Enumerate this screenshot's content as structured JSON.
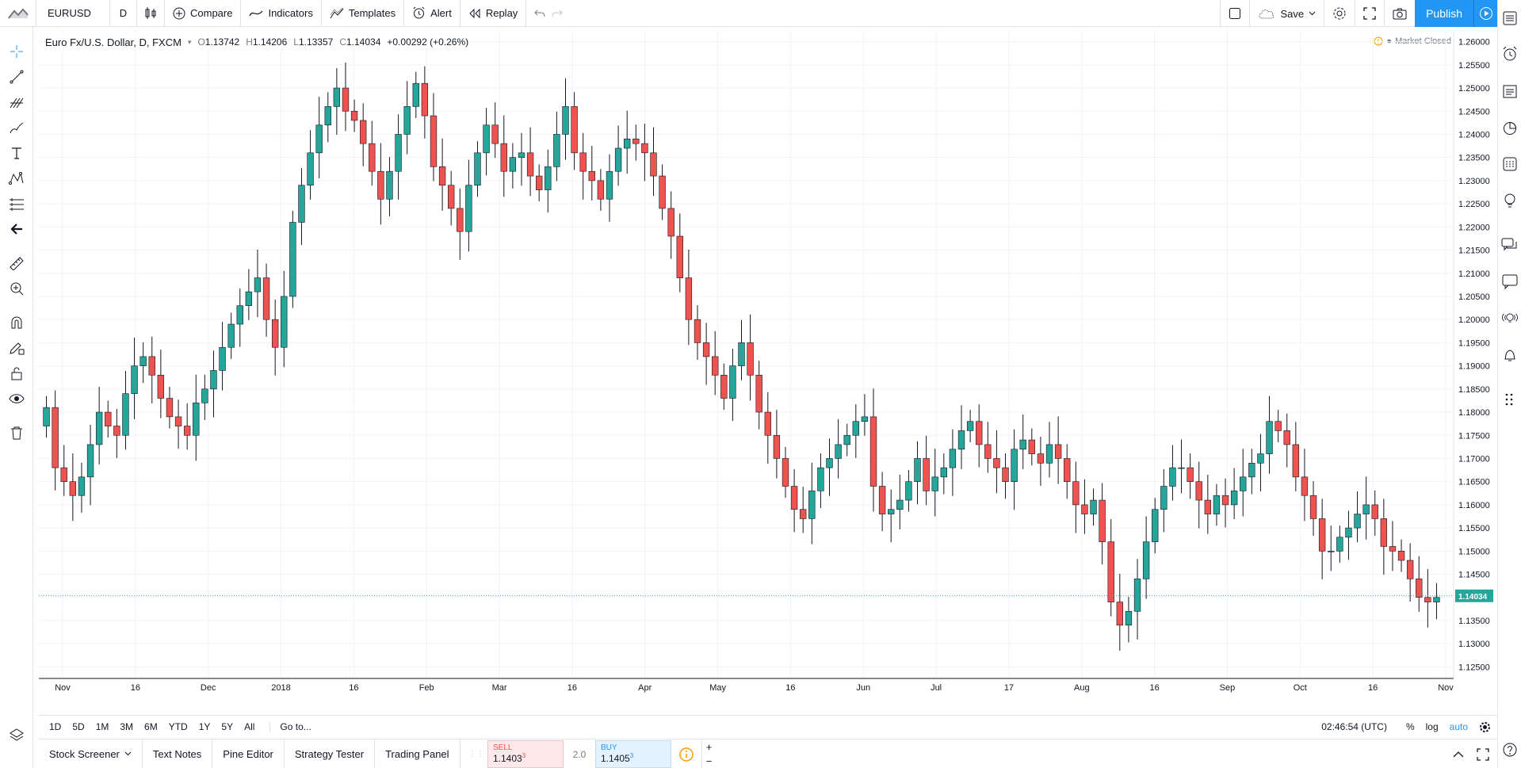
{
  "toolbar": {
    "symbol": "EURUSD",
    "interval": "D",
    "compare": "Compare",
    "indicators": "Indicators",
    "templates": "Templates",
    "alert": "Alert",
    "replay": "Replay",
    "save": "Save",
    "publish": "Publish"
  },
  "legend": {
    "title": "Euro Fx/U.S. Dollar, D, FXCM",
    "o_label": "O",
    "o": "1.13742",
    "h_label": "H",
    "h": "1.14206",
    "l_label": "L",
    "l": "1.13357",
    "c_label": "C",
    "c": "1.14034",
    "change": "+0.00292 (+0.26%)"
  },
  "market_status": "Market Closed",
  "last_price": "1.14034",
  "colors": {
    "up": "#26a69a",
    "down": "#ef5350",
    "accent": "#2196f3",
    "last_line": "#26a69a"
  },
  "chart_data": {
    "type": "candlestick",
    "symbol": "EURUSD",
    "y_ticks": [
      "1.26000",
      "1.25500",
      "1.25000",
      "1.24500",
      "1.24000",
      "1.23500",
      "1.23000",
      "1.22500",
      "1.22000",
      "1.21500",
      "1.21000",
      "1.20500",
      "1.20000",
      "1.19500",
      "1.19000",
      "1.18500",
      "1.18000",
      "1.17500",
      "1.17000",
      "1.16500",
      "1.16000",
      "1.15500",
      "1.15000",
      "1.14500",
      "1.14000",
      "1.13500",
      "1.13000",
      "1.12500"
    ],
    "x_ticks": [
      "Nov",
      "16",
      "Dec",
      "2018",
      "16",
      "Feb",
      "Mar",
      "16",
      "Apr",
      "May",
      "16",
      "Jun",
      "Jul",
      "17",
      "Aug",
      "16",
      "Sep",
      "Oct",
      "16",
      "Nov"
    ],
    "ylim": [
      1.1225,
      1.2625
    ],
    "grid": true,
    "close_path": [
      1.181,
      1.168,
      1.165,
      1.162,
      1.166,
      1.173,
      1.18,
      1.177,
      1.175,
      1.184,
      1.19,
      1.192,
      1.188,
      1.183,
      1.179,
      1.177,
      1.175,
      1.182,
      1.185,
      1.189,
      1.194,
      1.199,
      1.203,
      1.206,
      1.209,
      1.2,
      1.194,
      1.205,
      1.221,
      1.229,
      1.236,
      1.242,
      1.246,
      1.25,
      1.245,
      1.243,
      1.238,
      1.232,
      1.226,
      1.232,
      1.24,
      1.246,
      1.251,
      1.244,
      1.233,
      1.229,
      1.224,
      1.219,
      1.229,
      1.236,
      1.242,
      1.238,
      1.232,
      1.235,
      1.236,
      1.231,
      1.228,
      1.233,
      1.24,
      1.246,
      1.236,
      1.232,
      1.23,
      1.226,
      1.232,
      1.237,
      1.239,
      1.238,
      1.236,
      1.231,
      1.224,
      1.218,
      1.209,
      1.2,
      1.195,
      1.192,
      1.188,
      1.183,
      1.19,
      1.195,
      1.188,
      1.18,
      1.175,
      1.17,
      1.164,
      1.159,
      1.157,
      1.163,
      1.168,
      1.17,
      1.173,
      1.175,
      1.178,
      1.179,
      1.164,
      1.158,
      1.159,
      1.161,
      1.165,
      1.17,
      1.163,
      1.166,
      1.168,
      1.172,
      1.176,
      1.178,
      1.173,
      1.17,
      1.168,
      1.165,
      1.172,
      1.174,
      1.171,
      1.169,
      1.173,
      1.17,
      1.165,
      1.16,
      1.158,
      1.161,
      1.152,
      1.139,
      1.134,
      1.137,
      1.144,
      1.152,
      1.159,
      1.164,
      1.168,
      1.168,
      1.165,
      1.161,
      1.158,
      1.162,
      1.16,
      1.163,
      1.166,
      1.169,
      1.171,
      1.178,
      1.176,
      1.173,
      1.166,
      1.162,
      1.157,
      1.15,
      1.15,
      1.153,
      1.155,
      1.158,
      1.16,
      1.157,
      1.151,
      1.15,
      1.148,
      1.144,
      1.14,
      1.139,
      1.14
    ]
  },
  "range_buttons": [
    "1D",
    "5D",
    "1M",
    "3M",
    "6M",
    "YTD",
    "1Y",
    "5Y",
    "All"
  ],
  "goto": "Go to...",
  "time": "02:46:54 (UTC)",
  "scale_opts": {
    "pct": "%",
    "log": "log",
    "auto": "auto"
  },
  "panels": [
    "Stock Screener",
    "Text Notes",
    "Pine Editor",
    "Strategy Tester",
    "Trading Panel"
  ],
  "trade": {
    "sell_label": "SELL",
    "sell_price": "1.1403",
    "sell_sup": "3",
    "spread": "2.0",
    "buy_label": "BUY",
    "buy_price": "1.1405",
    "buy_sup": "3"
  }
}
